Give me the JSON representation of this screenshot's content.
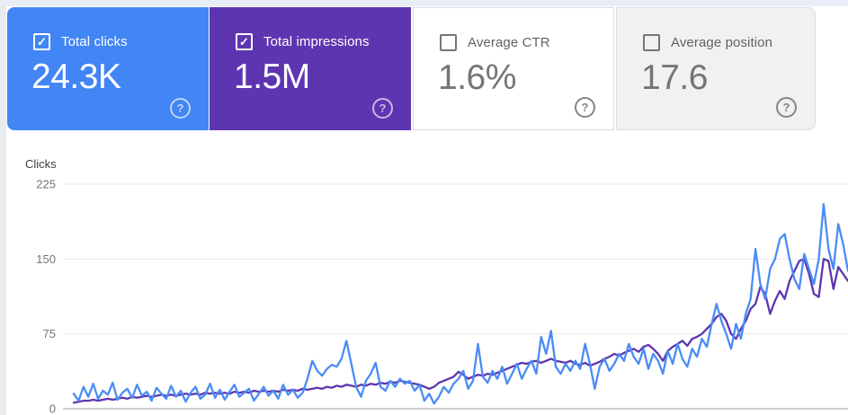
{
  "header_cards": {
    "check_glyph": "✓",
    "help_glyph": "?",
    "cards": [
      {
        "label": "Total clicks",
        "value": "24.3K",
        "checked": true,
        "bg": "#4285f4",
        "label_color": "#ffffff",
        "value_color": "#ffffff",
        "checkbox_color": "#ffffff",
        "help_color": "rgba(255,255,255,0.65)",
        "border": ""
      },
      {
        "label": "Total impressions",
        "value": "1.5M",
        "checked": true,
        "bg": "#5e35b1",
        "label_color": "#ffffff",
        "value_color": "#ffffff",
        "checkbox_color": "#ffffff",
        "help_color": "rgba(255,255,255,0.65)",
        "border": ""
      },
      {
        "label": "Average CTR",
        "value": "1.6%",
        "checked": false,
        "bg": "#ffffff",
        "label_color": "#5f6368",
        "value_color": "#757575",
        "checkbox_color": "#757575",
        "help_color": "#80868b",
        "border": "#dadce0"
      },
      {
        "label": "Average position",
        "value": "17.6",
        "checked": false,
        "bg": "#f1f1f1",
        "label_color": "#5f6368",
        "value_color": "#757575",
        "checkbox_color": "#757575",
        "help_color": "#80868b",
        "border": "#dadce0"
      }
    ]
  },
  "chart_data": {
    "type": "line",
    "ylabel": "Clicks",
    "yticks": [
      225,
      150,
      75,
      0
    ],
    "ylim": [
      0,
      240
    ],
    "grid": "horizontal",
    "legend_position": "none",
    "x_axis_labels": "none visible (time axis, cropped)",
    "axis_line_color": "#9aa0a6",
    "gridline_color": "#e8e8e8",
    "tick_label_color": "#757575",
    "series": [
      {
        "name": "Total clicks",
        "color": "#4a8cf5",
        "values": [
          15,
          8,
          22,
          12,
          25,
          10,
          18,
          14,
          26,
          9,
          16,
          20,
          11,
          24,
          13,
          17,
          8,
          21,
          15,
          10,
          23,
          12,
          18,
          7,
          16,
          22,
          10,
          14,
          25,
          11,
          19,
          9,
          17,
          24,
          12,
          16,
          20,
          8,
          15,
          22,
          13,
          18,
          10,
          24,
          14,
          19,
          11,
          16,
          30,
          48,
          38,
          33,
          40,
          44,
          42,
          50,
          68,
          45,
          22,
          12,
          28,
          35,
          46,
          22,
          18,
          28,
          22,
          30,
          25,
          28,
          18,
          24,
          8,
          15,
          5,
          12,
          22,
          16,
          25,
          30,
          38,
          20,
          28,
          65,
          32,
          26,
          38,
          30,
          42,
          25,
          35,
          45,
          30,
          40,
          48,
          35,
          72,
          55,
          78,
          42,
          35,
          45,
          38,
          48,
          40,
          65,
          45,
          20,
          42,
          50,
          38,
          45,
          55,
          48,
          65,
          52,
          45,
          60,
          40,
          55,
          48,
          35,
          58,
          45,
          65,
          50,
          42,
          60,
          52,
          70,
          62,
          85,
          105,
          88,
          75,
          60,
          85,
          70,
          95,
          110,
          160,
          125,
          110,
          140,
          150,
          170,
          175,
          150,
          130,
          120,
          155,
          140,
          125,
          150,
          205,
          160,
          140,
          185,
          165,
          138
        ]
      },
      {
        "name": "Total impressions",
        "color": "#5e35b1",
        "scale_note": "plotted against a hidden secondary axis; values given in clicks-axis units as drawn",
        "values": [
          6,
          7,
          8,
          8,
          9,
          8,
          9,
          10,
          9,
          10,
          11,
          10,
          12,
          11,
          12,
          13,
          12,
          13,
          14,
          13,
          14,
          13,
          14,
          15,
          14,
          15,
          14,
          16,
          15,
          16,
          15,
          16,
          15,
          17,
          16,
          17,
          16,
          18,
          17,
          18,
          17,
          18,
          17,
          19,
          18,
          19,
          18,
          20,
          19,
          20,
          21,
          20,
          22,
          21,
          23,
          22,
          24,
          23,
          22,
          24,
          23,
          25,
          24,
          26,
          25,
          27,
          26,
          28,
          27,
          26,
          25,
          24,
          22,
          20,
          22,
          26,
          28,
          30,
          32,
          37,
          34,
          30,
          32,
          34,
          33,
          35,
          34,
          36,
          38,
          40,
          42,
          44,
          46,
          45,
          47,
          48,
          46,
          48,
          50,
          48,
          47,
          46,
          48,
          45,
          44,
          46,
          43,
          45,
          47,
          50,
          52,
          55,
          53,
          56,
          58,
          60,
          57,
          62,
          64,
          60,
          55,
          48,
          58,
          62,
          65,
          68,
          63,
          70,
          72,
          75,
          80,
          85,
          92,
          95,
          88,
          75,
          70,
          80,
          88,
          100,
          105,
          122,
          115,
          95,
          108,
          118,
          110,
          128,
          138,
          148,
          150,
          135,
          115,
          112,
          150,
          148,
          120,
          142,
          135,
          128
        ]
      }
    ]
  }
}
